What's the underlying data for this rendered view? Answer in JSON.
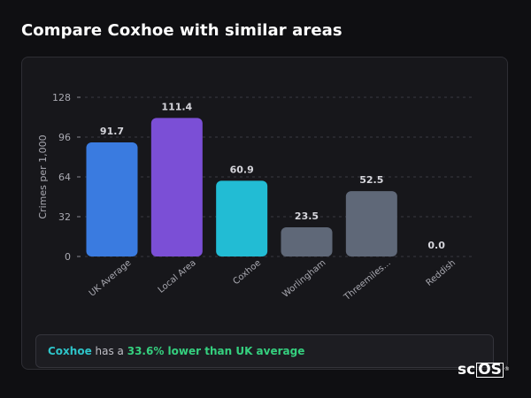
{
  "page": {
    "title": "Compare Coxhoe with similar areas"
  },
  "summary": {
    "place": "Coxhoe",
    "middle": " has a ",
    "stat": "33.6% lower than UK average"
  },
  "brand": {
    "prefix": "sc",
    "boxed": "OS",
    "mark": "®"
  },
  "colors": {
    "uk": "#3a7be0",
    "local": "#7b4fd6",
    "focus": "#22bcd4",
    "other": "#5f6878",
    "place_text": "#2ec4c9",
    "stat_text": "#35d07f"
  },
  "chart_data": {
    "type": "bar",
    "ylabel": "Crimes per 1,000",
    "xlabel": "",
    "ylim": [
      0,
      128
    ],
    "yticks": [
      0,
      32,
      64,
      96,
      128
    ],
    "grid": true,
    "categories": [
      "UK Average",
      "Local Area",
      "Coxhoe",
      "Worlingham",
      "Threemiles...",
      "Reddish"
    ],
    "values": [
      91.7,
      111.4,
      60.9,
      23.5,
      52.5,
      0.0
    ],
    "value_labels": [
      "91.7",
      "111.4",
      "60.9",
      "23.5",
      "52.5",
      "0.0"
    ],
    "bar_colors": [
      "#3a7be0",
      "#7b4fd6",
      "#22bcd4",
      "#5f6878",
      "#5f6878",
      "#5f6878"
    ]
  }
}
